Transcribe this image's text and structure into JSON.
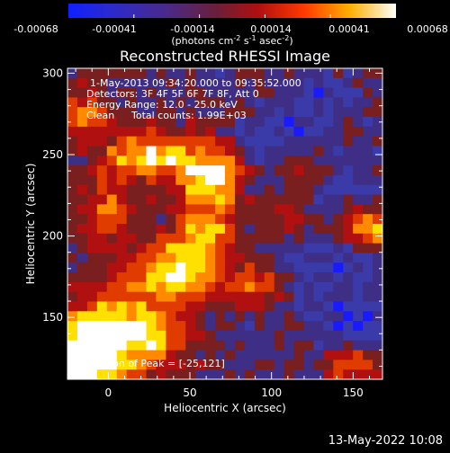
{
  "chart_data": {
    "type": "heatmap",
    "title": "Reconstructed RHESSI Image",
    "xlabel": "Heliocentric X (arcsec)",
    "ylabel": "Heliocentric Y (arcsec)",
    "xlim": [
      -25,
      168
    ],
    "ylim": [
      112,
      303
    ],
    "xticks": [
      0,
      50,
      100,
      150
    ],
    "yticks": [
      150,
      200,
      250,
      300
    ],
    "colorbar": {
      "ticks": [
        "-0.00068",
        "-0.00041",
        "-0.00014",
        "0.00014",
        "0.00041",
        "0.00068"
      ],
      "units_text": "(photons cm",
      "units_sup1": "-2",
      "units_mid": " s",
      "units_sup2": "-1",
      "units_mid2": " asec",
      "units_sup3": "-2",
      "units_end": ")"
    },
    "annotations": {
      "time": "1-May-2013 09:34:20.000  to 09:35:52.000",
      "detectors": "Detectors: 3F 4F 5F 6F 7F 8F, Att 0",
      "energy": "Energy Range: 12.0 - 25.0 keV",
      "clean_label": "Clean",
      "total_counts": "Total counts: 1.99E+03",
      "peak": "Position of Peak = [-25,121]"
    },
    "footer_date": "13-May-2022 10:08",
    "colormap": [
      "#1a1aff",
      "#3a3aa8",
      "#3f2e86",
      "#7a1f1f",
      "#b01010",
      "#e03c00",
      "#ff8a00",
      "#ffe000",
      "#ffffff"
    ],
    "grid": {
      "cols": 32,
      "rows": 32,
      "hotspots": [
        {
          "x": -20,
          "y": 120,
          "sx": 18,
          "sy": 22,
          "a": 1.0
        },
        {
          "x": 15,
          "y": 140,
          "sx": 22,
          "sy": 16,
          "a": 0.9
        },
        {
          "x": 40,
          "y": 178,
          "sx": 20,
          "sy": 12,
          "a": 0.85
        },
        {
          "x": 60,
          "y": 200,
          "sx": 14,
          "sy": 10,
          "a": 0.7
        },
        {
          "x": 25,
          "y": 250,
          "sx": 20,
          "sy": 10,
          "a": 0.75
        },
        {
          "x": 62,
          "y": 235,
          "sx": 14,
          "sy": 14,
          "a": 0.95
        },
        {
          "x": -15,
          "y": 275,
          "sx": 12,
          "sy": 10,
          "a": 0.55
        },
        {
          "x": 0,
          "y": 215,
          "sx": 10,
          "sy": 14,
          "a": 0.55
        },
        {
          "x": 90,
          "y": 170,
          "sx": 14,
          "sy": 10,
          "a": 0.55
        },
        {
          "x": 110,
          "y": 210,
          "sx": 14,
          "sy": 10,
          "a": 0.5
        },
        {
          "x": 160,
          "y": 205,
          "sx": 12,
          "sy": 8,
          "a": 0.85
        },
        {
          "x": 150,
          "y": 120,
          "sx": 14,
          "sy": 10,
          "a": 0.45
        },
        {
          "x": 118,
          "y": 240,
          "sx": 10,
          "sy": 10,
          "a": 0.35
        }
      ],
      "coldspots": [
        {
          "x": 120,
          "y": 200,
          "sx": 30,
          "sy": 40,
          "a": 0.6
        },
        {
          "x": 155,
          "y": 145,
          "sx": 14,
          "sy": 10,
          "a": 0.9
        },
        {
          "x": 105,
          "y": 260,
          "sx": 12,
          "sy": 10,
          "a": 0.6
        },
        {
          "x": 130,
          "y": 285,
          "sx": 14,
          "sy": 10,
          "a": 0.55
        }
      ]
    }
  }
}
